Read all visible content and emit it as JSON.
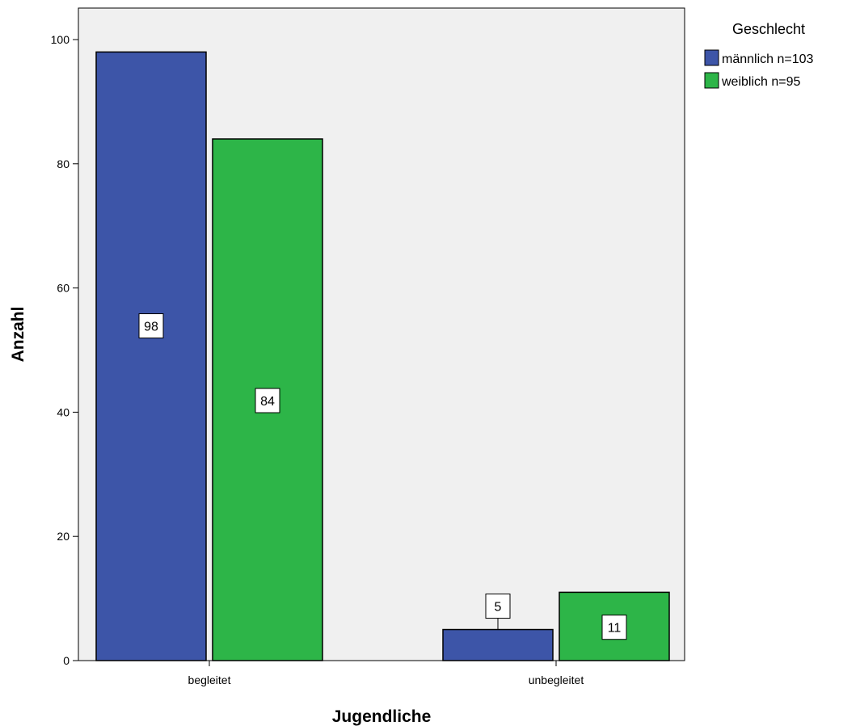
{
  "chart_data": {
    "type": "bar",
    "categories": [
      "begleitet",
      "unbegleitet"
    ],
    "series": [
      {
        "name": "männlich n=103",
        "values": [
          98,
          5
        ],
        "color": "#3d55a8"
      },
      {
        "name": "weiblich n=95",
        "values": [
          84,
          11
        ],
        "color": "#2db548"
      }
    ],
    "xlabel": "Jugendliche",
    "ylabel": "Anzahl",
    "ylim": [
      0,
      100
    ],
    "yticks": [
      0,
      20,
      40,
      60,
      80,
      100
    ],
    "legend": {
      "title": "Geschlecht",
      "position": "top-right"
    },
    "data_labels": true,
    "plot_background": "#f0f0f0",
    "grid": false
  }
}
